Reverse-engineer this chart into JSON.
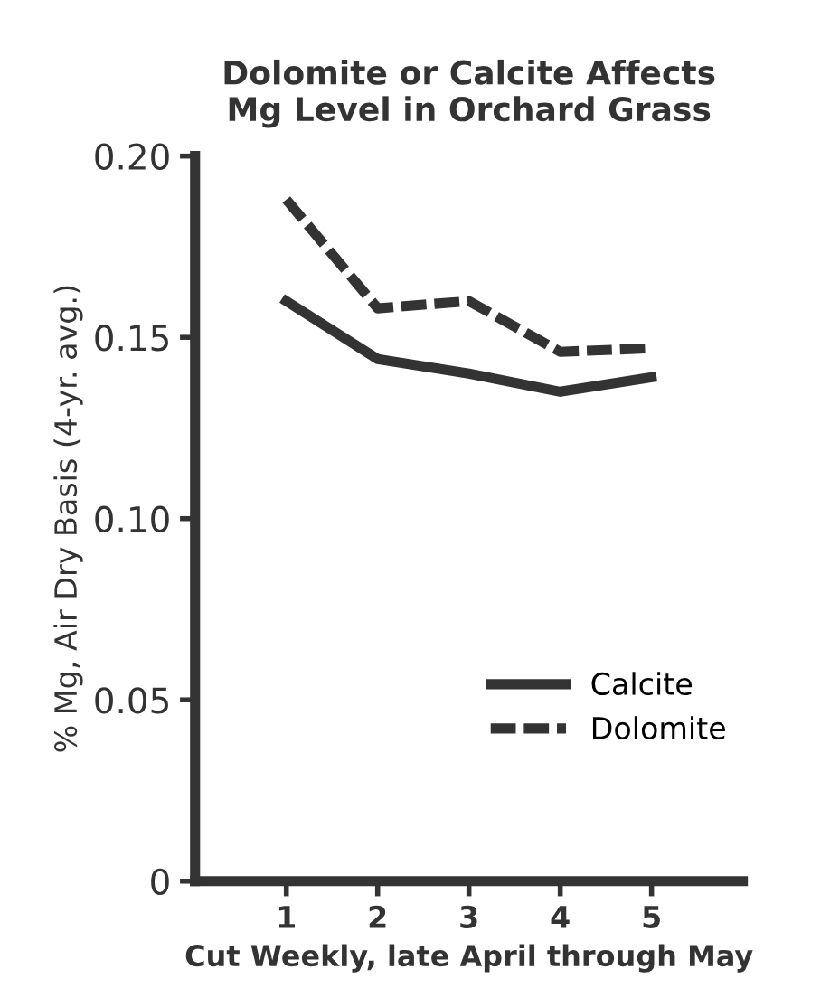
{
  "chart_data": {
    "type": "line",
    "title": "Dolomite or Calcite Affects\nMg Level in Orchard Grass",
    "xlabel": "Cut Weekly, late April through May",
    "ylabel": "% Mg, Air Dry Basis (4-yr. avg.)",
    "x": [
      1,
      2,
      3,
      4,
      5
    ],
    "series": [
      {
        "name": "Calcite",
        "color": "#333333",
        "line_style": "solid",
        "values": [
          0.16,
          0.144,
          0.14,
          0.135,
          0.139
        ]
      },
      {
        "name": "Dolomite",
        "color": "#333333",
        "line_style": "dashed",
        "values": [
          0.188,
          0.158,
          0.16,
          0.146,
          0.147
        ]
      }
    ],
    "xlim": [
      0,
      6
    ],
    "xticks": [
      1,
      2,
      3,
      4,
      5
    ],
    "ylim": [
      0,
      0.2
    ],
    "yticks": [
      {
        "value": 0,
        "label": "0"
      },
      {
        "value": 0.05,
        "label": "0.05"
      },
      {
        "value": 0.1,
        "label": "0.10"
      },
      {
        "value": 0.15,
        "label": "0.15"
      },
      {
        "value": 0.2,
        "label": "0.20"
      }
    ],
    "legend": "bottom right",
    "grid": false
  }
}
